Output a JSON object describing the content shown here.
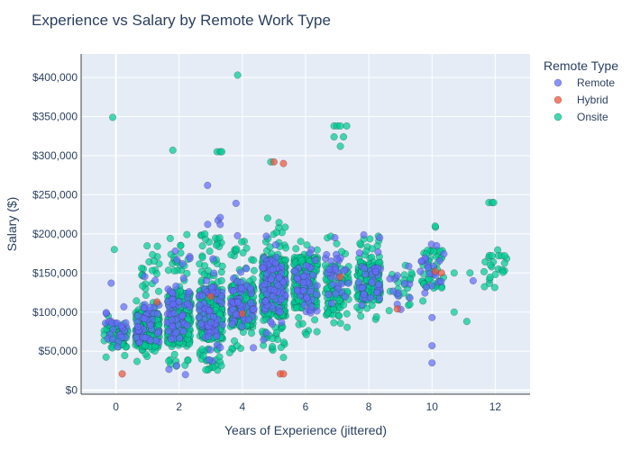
{
  "chart_data": {
    "type": "scatter",
    "title": "Experience vs Salary by Remote Work Type",
    "xlabel": "Years of Experience (jittered)",
    "ylabel": "Salary ($)",
    "xlim": [
      -1.1,
      13.1
    ],
    "ylim": [
      -5000,
      430000
    ],
    "x_ticks": [
      0,
      2,
      4,
      6,
      8,
      10,
      12
    ],
    "y_ticks": [
      0,
      50000,
      100000,
      150000,
      200000,
      250000,
      300000,
      350000,
      400000
    ],
    "y_tick_labels": [
      "$0",
      "$50,000",
      "$100,000",
      "$150,000",
      "$200,000",
      "$250,000",
      "$300,000",
      "$350,000",
      "$400,000"
    ],
    "grid": true,
    "legend_title": "Remote Type",
    "legend_position": "top-right",
    "series": [
      {
        "name": "Remote",
        "color": "#636efa",
        "clusters": [
          {
            "x": 0,
            "ymin": 40000,
            "ymax": 130000,
            "count": 25,
            "q1": 60000,
            "q3": 92000
          },
          {
            "x": 1,
            "ymin": 40000,
            "ymax": 185000,
            "count": 45,
            "q1": 60000,
            "q3": 110000
          },
          {
            "x": 2,
            "ymin": 25000,
            "ymax": 195000,
            "count": 60,
            "q1": 65000,
            "q3": 130000
          },
          {
            "x": 3,
            "ymin": 30000,
            "ymax": 220000,
            "count": 70,
            "q1": 65000,
            "q3": 135000
          },
          {
            "x": 4,
            "ymin": 50000,
            "ymax": 200000,
            "count": 55,
            "q1": 80000,
            "q3": 140000
          },
          {
            "x": 5,
            "ymin": 55000,
            "ymax": 210000,
            "count": 80,
            "q1": 100000,
            "q3": 170000
          },
          {
            "x": 6,
            "ymin": 85000,
            "ymax": 180000,
            "count": 45,
            "q1": 100000,
            "q3": 160000
          },
          {
            "x": 7,
            "ymin": 80000,
            "ymax": 200000,
            "count": 30,
            "q1": 110000,
            "q3": 170000
          },
          {
            "x": 8,
            "ymin": 85000,
            "ymax": 200000,
            "count": 35,
            "q1": 115000,
            "q3": 165000
          },
          {
            "x": 9,
            "ymin": 100000,
            "ymax": 160000,
            "count": 10,
            "q1": 115000,
            "q3": 145000
          },
          {
            "x": 10,
            "ymin": 90000,
            "ymax": 195000,
            "count": 20,
            "q1": 130000,
            "q3": 170000
          }
        ],
        "points": [
          {
            "x": -0.15,
            "y": 137000
          },
          {
            "x": 2.2,
            "y": 20000
          },
          {
            "x": 2.9,
            "y": 262000
          },
          {
            "x": 3.3,
            "y": 221000
          },
          {
            "x": 3.3,
            "y": 212000
          },
          {
            "x": 3.8,
            "y": 239000
          },
          {
            "x": 10.0,
            "y": 57000
          },
          {
            "x": 10.0,
            "y": 35000
          },
          {
            "x": 10.0,
            "y": 93000
          },
          {
            "x": 11.3,
            "y": 140000
          },
          {
            "x": 9.3,
            "y": 118000
          },
          {
            "x": 8.9,
            "y": 110000
          }
        ]
      },
      {
        "name": "Hybrid",
        "color": "#ef553b",
        "clusters": [],
        "points": [
          {
            "x": 0.2,
            "y": 21000
          },
          {
            "x": 5.0,
            "y": 292000
          },
          {
            "x": 5.3,
            "y": 290000
          },
          {
            "x": 5.2,
            "y": 21000
          },
          {
            "x": 5.3,
            "y": 21000
          },
          {
            "x": 8.9,
            "y": 104000
          },
          {
            "x": 7.1,
            "y": 145000
          },
          {
            "x": 10.1,
            "y": 152000
          },
          {
            "x": 10.3,
            "y": 150000
          },
          {
            "x": 1.3,
            "y": 113000
          },
          {
            "x": 3.0,
            "y": 120000
          },
          {
            "x": 4.0,
            "y": 98000
          }
        ]
      },
      {
        "name": "Onsite",
        "color": "#00cc96",
        "clusters": [
          {
            "x": 0,
            "ymin": 35000,
            "ymax": 120000,
            "count": 70,
            "q1": 55000,
            "q3": 85000
          },
          {
            "x": 1,
            "ymin": 35000,
            "ymax": 190000,
            "count": 260,
            "q1": 55000,
            "q3": 100000
          },
          {
            "x": 2,
            "ymin": 25000,
            "ymax": 200000,
            "count": 300,
            "q1": 60000,
            "q3": 125000
          },
          {
            "x": 3,
            "ymin": 25000,
            "ymax": 200000,
            "count": 340,
            "q1": 65000,
            "q3": 130000
          },
          {
            "x": 4,
            "ymin": 45000,
            "ymax": 195000,
            "count": 220,
            "q1": 80000,
            "q3": 135000
          },
          {
            "x": 5,
            "ymin": 45000,
            "ymax": 215000,
            "count": 380,
            "q1": 95000,
            "q3": 170000
          },
          {
            "x": 6,
            "ymin": 70000,
            "ymax": 195000,
            "count": 220,
            "q1": 105000,
            "q3": 170000
          },
          {
            "x": 7,
            "ymin": 80000,
            "ymax": 200000,
            "count": 90,
            "q1": 95000,
            "q3": 160000
          },
          {
            "x": 8,
            "ymin": 85000,
            "ymax": 195000,
            "count": 160,
            "q1": 115000,
            "q3": 165000
          },
          {
            "x": 9,
            "ymin": 100000,
            "ymax": 160000,
            "count": 20,
            "q1": 115000,
            "q3": 150000
          },
          {
            "x": 10,
            "ymin": 100000,
            "ymax": 210000,
            "count": 45,
            "q1": 130000,
            "q3": 180000
          },
          {
            "x": 12,
            "ymin": 120000,
            "ymax": 180000,
            "count": 20,
            "q1": 140000,
            "q3": 172000
          }
        ],
        "points": [
          {
            "x": -0.1,
            "y": 349000
          },
          {
            "x": -0.05,
            "y": 180000
          },
          {
            "x": 1.8,
            "y": 307000
          },
          {
            "x": 3.2,
            "y": 305000
          },
          {
            "x": 3.3,
            "y": 305000
          },
          {
            "x": 3.35,
            "y": 305000
          },
          {
            "x": 3.85,
            "y": 403000
          },
          {
            "x": 4.8,
            "y": 220000
          },
          {
            "x": 4.9,
            "y": 292000
          },
          {
            "x": 6.9,
            "y": 338000
          },
          {
            "x": 7.0,
            "y": 338000
          },
          {
            "x": 7.1,
            "y": 338000
          },
          {
            "x": 7.3,
            "y": 338000
          },
          {
            "x": 6.9,
            "y": 324000
          },
          {
            "x": 7.2,
            "y": 324000
          },
          {
            "x": 7.1,
            "y": 312000
          },
          {
            "x": 11.8,
            "y": 240000
          },
          {
            "x": 11.9,
            "y": 240000
          },
          {
            "x": 11.95,
            "y": 240000
          },
          {
            "x": 11.9,
            "y": 172000
          },
          {
            "x": 12.1,
            "y": 172000
          },
          {
            "x": 12.2,
            "y": 172000
          },
          {
            "x": 12.3,
            "y": 172000
          },
          {
            "x": 10.7,
            "y": 100000
          },
          {
            "x": 11.1,
            "y": 88000
          },
          {
            "x": 10.7,
            "y": 150000
          },
          {
            "x": 11.2,
            "y": 150000
          },
          {
            "x": 9.3,
            "y": 110000
          },
          {
            "x": 10.1,
            "y": 210000
          },
          {
            "x": 8.3,
            "y": 197000
          },
          {
            "x": 5.3,
            "y": 42000
          },
          {
            "x": 3.6,
            "y": 48000
          }
        ]
      }
    ]
  }
}
